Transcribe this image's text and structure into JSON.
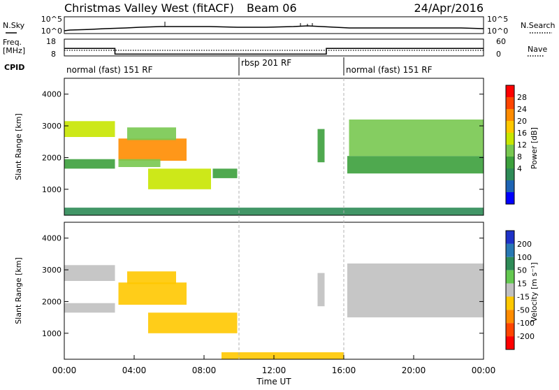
{
  "header": {
    "title": "Christmas Valley West (fitACF)",
    "beam": "Beam 06",
    "date": "24/Apr/2016"
  },
  "top_panels": {
    "nsky_label": "N.Sky",
    "nsky_ticks": [
      "10^5",
      "10^0"
    ],
    "nsearch_label": "N.Search",
    "nsearch_ticks": [
      "10^5",
      "10^0"
    ],
    "freq_label": "Freq.",
    "freq_unit": "[MHz]",
    "freq_ticks": [
      "18",
      "8"
    ],
    "nave_label": "Nave",
    "nave_ticks": [
      "60",
      "0"
    ],
    "cpid_label": "CPID",
    "cpid_segments": [
      {
        "label": "normal (fast) 151 RF",
        "start_h": 0,
        "end_h": 10
      },
      {
        "label": "rbsp 201 RF",
        "start_h": 10,
        "end_h": 16
      },
      {
        "label": "normal (fast) 151 RF",
        "start_h": 16,
        "end_h": 24
      }
    ]
  },
  "x_axis": {
    "label": "Time UT",
    "ticks": [
      "00:00",
      "04:00",
      "08:00",
      "12:00",
      "16:00",
      "20:00",
      "00:00"
    ]
  },
  "colorbars": {
    "power": {
      "label": "Power [dB]",
      "ticks": [
        "28",
        "24",
        "20",
        "16",
        "12",
        "8",
        "4"
      ],
      "colors": [
        "#ff0000",
        "#ff4500",
        "#ff8c00",
        "#ffc800",
        "#c8e600",
        "#78c850",
        "#3ca03c",
        "#2e8b57",
        "#1e64b4",
        "#0000ff"
      ]
    },
    "velocity": {
      "label": "Velocity [m s⁻¹]",
      "ticks": [
        "200",
        "100",
        "50",
        "15",
        "-15",
        "-50",
        "-100",
        "-200"
      ],
      "colors": [
        "#1e32c8",
        "#2878b4",
        "#2e8b57",
        "#64c850",
        "#c0c0c0",
        "#ffc800",
        "#ff8c00",
        "#ff4500",
        "#ff0000"
      ]
    }
  },
  "chart_data": [
    {
      "type": "line",
      "title": "Christmas Valley West (fitACF) Beam 06 24/Apr/2016",
      "ylabel": "Freq. [MHz]",
      "x": [
        0.0,
        2.9,
        2.9,
        15.0,
        15.0,
        24.0
      ],
      "series": [
        {
          "name": "Freq.",
          "values": [
            12.5,
            12.5,
            9.1,
            9.1,
            12.5,
            12.5
          ]
        }
      ],
      "ylim": [
        8,
        18
      ]
    },
    {
      "type": "heatmap",
      "ylabel": "Slant Range [km]",
      "colorbar_label": "Power [dB]",
      "xlim": [
        0,
        24
      ],
      "ylim": [
        180,
        4500
      ],
      "yticks": [
        1000,
        2000,
        3000,
        4000
      ],
      "cells": [
        {
          "t0": 0.0,
          "t1": 2.9,
          "r0": 2650,
          "r1": 3150,
          "power": 18
        },
        {
          "t0": 0.0,
          "t1": 2.9,
          "r0": 1650,
          "r1": 1950,
          "power": 11
        },
        {
          "t0": 3.1,
          "t1": 7.0,
          "r0": 1900,
          "r1": 2600,
          "power": 25
        },
        {
          "t0": 3.1,
          "t1": 5.5,
          "r0": 1700,
          "r1": 1950,
          "power": 14
        },
        {
          "t0": 3.6,
          "t1": 6.4,
          "r0": 2550,
          "r1": 2950,
          "power": 15
        },
        {
          "t0": 4.8,
          "t1": 8.4,
          "r0": 1000,
          "r1": 1650,
          "power": 19
        },
        {
          "t0": 8.5,
          "t1": 9.9,
          "r0": 1350,
          "r1": 1650,
          "power": 13
        },
        {
          "t0": 14.5,
          "t1": 14.9,
          "r0": 1850,
          "r1": 2900,
          "power": 12
        },
        {
          "t0": 16.2,
          "t1": 24.0,
          "r0": 1500,
          "r1": 2050,
          "power": 12
        },
        {
          "t0": 16.3,
          "t1": 24.0,
          "r0": 2050,
          "r1": 3200,
          "power": 16
        },
        {
          "t0": 0.0,
          "t1": 24.0,
          "r0": 180,
          "r1": 420,
          "power": 10
        }
      ]
    },
    {
      "type": "heatmap",
      "ylabel": "Slant Range [km]",
      "colorbar_label": "Velocity [m s⁻¹]",
      "xlim": [
        0,
        24
      ],
      "ylim": [
        180,
        4500
      ],
      "yticks": [
        1000,
        2000,
        3000,
        4000
      ],
      "cells": [
        {
          "t0": 0.0,
          "t1": 2.9,
          "r0": 2650,
          "r1": 3150,
          "velocity": 0
        },
        {
          "t0": 0.0,
          "t1": 2.9,
          "r0": 1650,
          "r1": 1950,
          "velocity": 0
        },
        {
          "t0": 3.1,
          "t1": 7.0,
          "r0": 1900,
          "r1": 2600,
          "velocity": -30
        },
        {
          "t0": 3.6,
          "t1": 6.4,
          "r0": 2550,
          "r1": 2950,
          "velocity": -20
        },
        {
          "t0": 4.8,
          "t1": 9.9,
          "r0": 1000,
          "r1": 1650,
          "velocity": -50
        },
        {
          "t0": 14.5,
          "t1": 14.9,
          "r0": 1850,
          "r1": 2900,
          "velocity": 0
        },
        {
          "t0": 16.2,
          "t1": 24.0,
          "r0": 1500,
          "r1": 3200,
          "velocity": 0
        },
        {
          "t0": 9.0,
          "t1": 16.0,
          "r0": 180,
          "r1": 400,
          "velocity": -40
        }
      ]
    }
  ]
}
